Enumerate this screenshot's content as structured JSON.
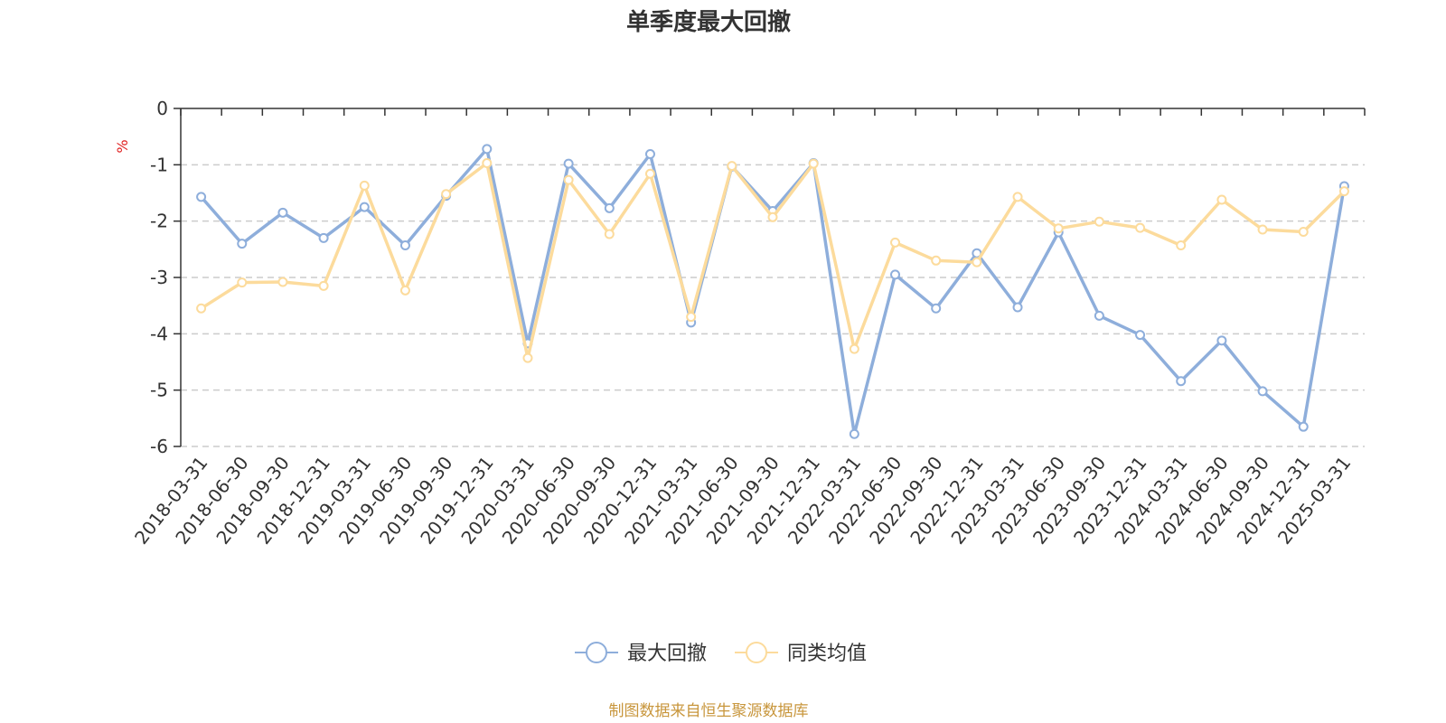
{
  "chart_data": {
    "type": "line",
    "title": "单季度最大回撤",
    "ylabel": "%",
    "ylim": [
      -6,
      0
    ],
    "yticks": [
      0,
      -1,
      -2,
      -3,
      -4,
      -5,
      -6
    ],
    "grid": true,
    "legend_position": "bottom",
    "categories": [
      "2018-03-31",
      "2018-06-30",
      "2018-09-30",
      "2018-12-31",
      "2019-03-31",
      "2019-06-30",
      "2019-09-30",
      "2019-12-31",
      "2020-03-31",
      "2020-06-30",
      "2020-09-30",
      "2020-12-31",
      "2021-03-31",
      "2021-06-30",
      "2021-09-30",
      "2021-12-31",
      "2022-03-31",
      "2022-06-30",
      "2022-09-30",
      "2022-12-31",
      "2023-03-31",
      "2023-06-30",
      "2023-09-30",
      "2023-12-31",
      "2024-03-31",
      "2024-06-30",
      "2024-09-30",
      "2024-12-31",
      "2025-03-31"
    ],
    "series": [
      {
        "name": "最大回撤",
        "color": "#8eaedb",
        "values": [
          -1.57,
          -2.4,
          -1.85,
          -2.3,
          -1.75,
          -2.43,
          -1.55,
          -0.72,
          -4.17,
          -0.98,
          -1.77,
          -0.81,
          -3.8,
          -1.03,
          -1.82,
          -0.97,
          -5.78,
          -2.95,
          -3.55,
          -2.57,
          -3.53,
          -2.2,
          -3.68,
          -4.02,
          -4.84,
          -4.12,
          -5.02,
          -5.65,
          -1.38
        ]
      },
      {
        "name": "同类均值",
        "color": "#fcdb9c",
        "values": [
          -3.55,
          -3.09,
          -3.08,
          -3.15,
          -1.37,
          -3.23,
          -1.52,
          -0.97,
          -4.43,
          -1.27,
          -2.23,
          -1.16,
          -3.7,
          -1.02,
          -1.93,
          -0.98,
          -4.27,
          -2.38,
          -2.7,
          -2.73,
          -1.57,
          -2.13,
          -2.01,
          -2.12,
          -2.43,
          -1.62,
          -2.15,
          -2.19,
          -1.47
        ]
      }
    ],
    "source": "制图数据来自恒生聚源数据库",
    "colors": {
      "axis": "#333333",
      "grid": "#cccccc",
      "unit": "#e02020",
      "source": "#c8963c"
    }
  }
}
